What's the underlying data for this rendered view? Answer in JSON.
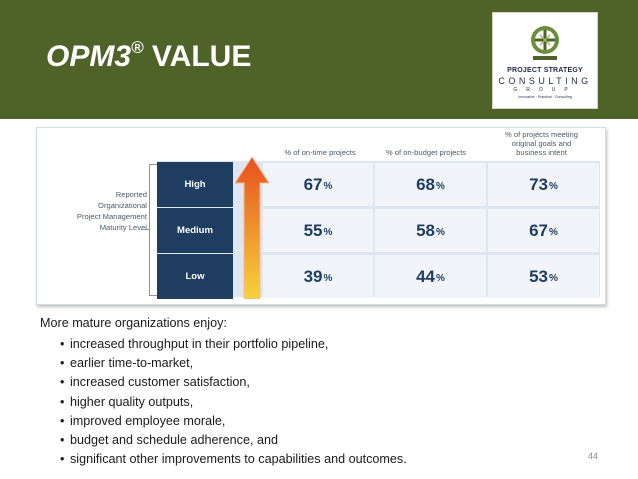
{
  "slide": {
    "title_main": "OPM3",
    "title_sup": "®",
    "title_rest": " VALUE",
    "page_number": "44",
    "header_color": "#4f6228"
  },
  "logo": {
    "line1": "PROJECT STRATEGY",
    "line2": "CONSULTING",
    "line3": "GROUP",
    "line4": "Innovative · Practical · Consulting"
  },
  "table": {
    "y_axis_label": [
      "Reported",
      "Organizational",
      "Project Management",
      "Maturity Level"
    ],
    "columns": [
      [
        "% of on-time projects"
      ],
      [
        "% of on-budget projects"
      ],
      [
        "% of projects meeting",
        "original goals and",
        "business intent"
      ]
    ],
    "rows": [
      {
        "label": "High",
        "values": [
          "67",
          "68",
          "73"
        ]
      },
      {
        "label": "Medium",
        "values": [
          "55",
          "58",
          "67"
        ]
      },
      {
        "label": "Low",
        "values": [
          "39",
          "44",
          "53"
        ]
      }
    ],
    "unit": "%",
    "row_label_color": "#1f3d60",
    "arrow_colors": [
      "#e8501f",
      "#f6d33b"
    ]
  },
  "body": {
    "intro": "More mature organizations enjoy:",
    "bullet_glyph": "•",
    "bullets": [
      "increased throughput in their portfolio pipeline,",
      "earlier time-to-market,",
      "increased customer satisfaction,",
      "higher quality outputs,",
      "improved employee morale,",
      "budget and schedule adherence, and",
      "significant other improvements to capabilities and outcomes."
    ]
  }
}
